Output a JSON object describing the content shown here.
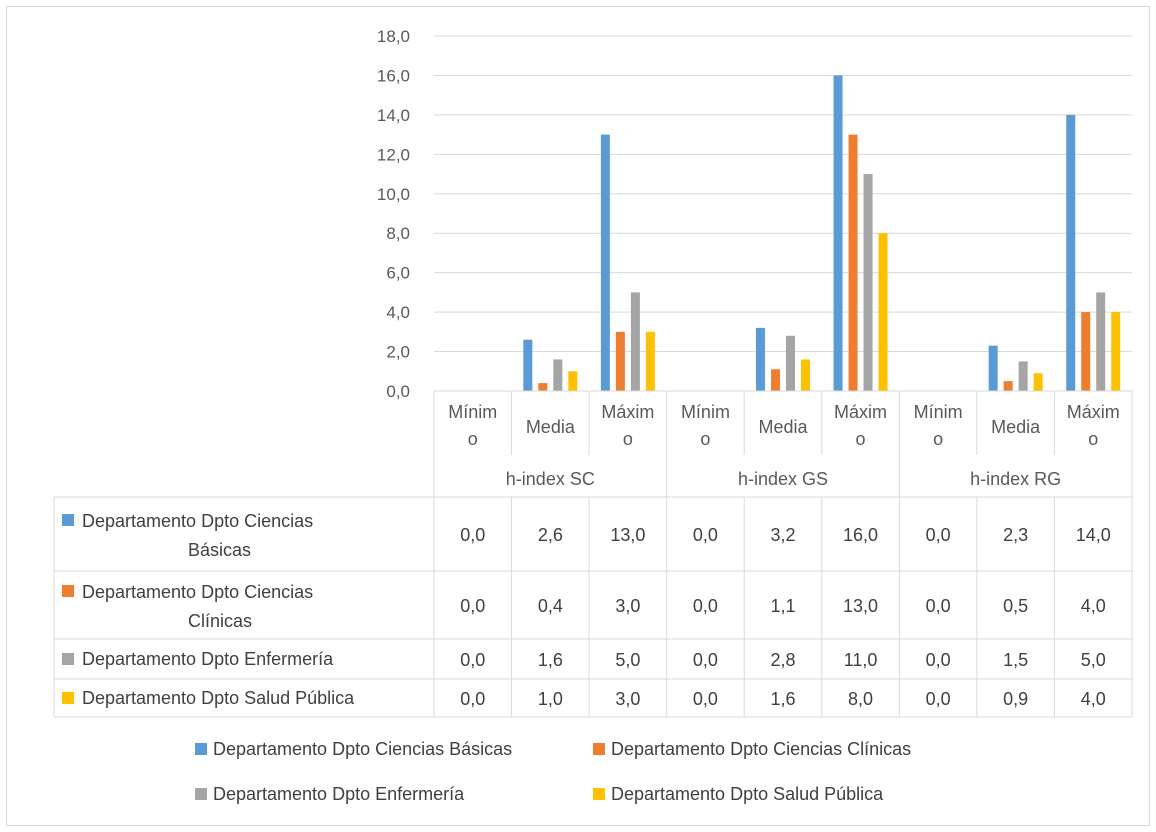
{
  "chart_data": {
    "type": "bar",
    "title": "",
    "xlabel": "",
    "ylabel": "",
    "ylim": [
      0,
      18
    ],
    "y_ticks": [
      "0,0",
      "2,0",
      "4,0",
      "6,0",
      "8,0",
      "10,0",
      "12,0",
      "14,0",
      "16,0",
      "18,0"
    ],
    "grid": true,
    "legend_position": "bottom",
    "groups": [
      {
        "name": "h-index SC",
        "categories": [
          [
            "Mínim",
            "o"
          ],
          [
            "Media"
          ],
          [
            "Máxim",
            "o"
          ]
        ]
      },
      {
        "name": "h-index GS",
        "categories": [
          [
            "Mínim",
            "o"
          ],
          [
            "Media"
          ],
          [
            "Máxim",
            "o"
          ]
        ]
      },
      {
        "name": "h-index RG",
        "categories": [
          [
            "Mínim",
            "o"
          ],
          [
            "Media"
          ],
          [
            "Máxim",
            "o"
          ]
        ]
      }
    ],
    "series": [
      {
        "name": "Departamento Dpto Ciencias Básicas",
        "table_label": [
          "Departamento Dpto Ciencias",
          "Básicas"
        ],
        "color": "#5b9bd5",
        "values": [
          0.0,
          2.6,
          13.0,
          0.0,
          3.2,
          16.0,
          0.0,
          2.3,
          14.0
        ],
        "labels": [
          "0,0",
          "2,6",
          "13,0",
          "0,0",
          "3,2",
          "16,0",
          "0,0",
          "2,3",
          "14,0"
        ]
      },
      {
        "name": "Departamento Dpto Ciencias Clínicas",
        "table_label": [
          "Departamento Dpto Ciencias",
          "Clínicas"
        ],
        "color": "#ed7d31",
        "values": [
          0.0,
          0.4,
          3.0,
          0.0,
          1.1,
          13.0,
          0.0,
          0.5,
          4.0
        ],
        "labels": [
          "0,0",
          "0,4",
          "3,0",
          "0,0",
          "1,1",
          "13,0",
          "0,0",
          "0,5",
          "4,0"
        ]
      },
      {
        "name": "Departamento Dpto Enfermería",
        "table_label": [
          "Departamento Dpto Enfermería"
        ],
        "color": "#a5a5a5",
        "values": [
          0.0,
          1.6,
          5.0,
          0.0,
          2.8,
          11.0,
          0.0,
          1.5,
          5.0
        ],
        "labels": [
          "0,0",
          "1,6",
          "5,0",
          "0,0",
          "2,8",
          "11,0",
          "0,0",
          "1,5",
          "5,0"
        ]
      },
      {
        "name": "Departamento Dpto Salud Pública",
        "table_label": [
          "Departamento Dpto Salud Pública"
        ],
        "color": "#ffc000",
        "values": [
          0.0,
          1.0,
          3.0,
          0.0,
          1.6,
          8.0,
          0.0,
          0.9,
          4.0
        ],
        "labels": [
          "0,0",
          "1,0",
          "3,0",
          "0,0",
          "1,6",
          "8,0",
          "0,0",
          "0,9",
          "4,0"
        ]
      }
    ]
  }
}
